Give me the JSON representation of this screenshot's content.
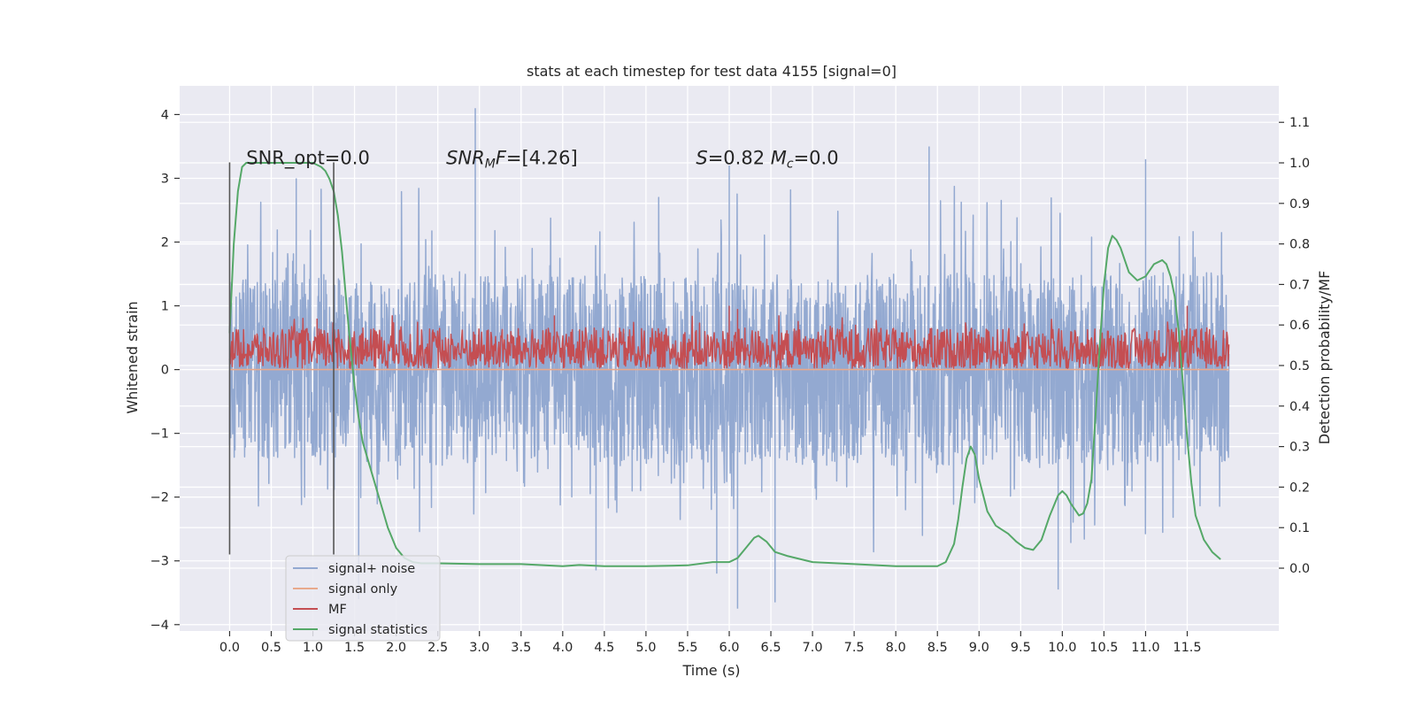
{
  "chart_data": {
    "type": "line",
    "title": "stats at each timestep for test data 4155 [signal=0]",
    "xlabel": "Time (s)",
    "ylabel": "Whitened strain",
    "y2label": "Detection probability/MF",
    "xlim": [
      -0.6,
      12.6
    ],
    "ylim": [
      -4.1,
      4.45
    ],
    "y2lim": [
      -0.155,
      1.19
    ],
    "x_ticks": [
      0.0,
      0.5,
      1.0,
      1.5,
      2.0,
      2.5,
      3.0,
      3.5,
      4.0,
      4.5,
      5.0,
      5.5,
      6.0,
      6.5,
      7.0,
      7.5,
      8.0,
      8.5,
      9.0,
      9.5,
      10.0,
      10.5,
      11.0,
      11.5
    ],
    "x_tick_labels": [
      "0.0",
      "0.5",
      "1.0",
      "1.5",
      "2.0",
      "2.5",
      "3.0",
      "3.5",
      "4.0",
      "4.5",
      "5.0",
      "5.5",
      "6.0",
      "6.5",
      "7.0",
      "7.5",
      "8.0",
      "8.5",
      "9.0",
      "9.5",
      "10.0",
      "10.5",
      "11.0",
      "11.5"
    ],
    "y_ticks": [
      -4,
      -3,
      -2,
      -1,
      0,
      1,
      2,
      3,
      4
    ],
    "y_tick_labels": [
      "−4",
      "−3",
      "−2",
      "−1",
      "0",
      "1",
      "2",
      "3",
      "4"
    ],
    "y2_ticks": [
      0.0,
      0.1,
      0.2,
      0.3,
      0.4,
      0.5,
      0.6,
      0.7,
      0.8,
      0.9,
      1.0,
      1.1
    ],
    "y2_tick_labels": [
      "0.0",
      "0.1",
      "0.2",
      "0.3",
      "0.4",
      "0.5",
      "0.6",
      "0.7",
      "0.8",
      "0.9",
      "1.0",
      "1.1"
    ],
    "grid": true,
    "legend_position": "lower-left",
    "annotations": [
      {
        "x": 0.2,
        "y": 3.22,
        "text": "SNR_opt=0.0"
      },
      {
        "x": 2.6,
        "y": 3.22,
        "text": "SNR_MF=[4.26]",
        "math": "snrmf"
      },
      {
        "x": 5.6,
        "y": 3.22,
        "text": "S=0.82   M_c=0.0",
        "math": "smc"
      }
    ],
    "vlines": [
      {
        "x": 0.0,
        "ymin": -2.9,
        "ymax": 3.25
      },
      {
        "x": 1.25,
        "ymin": -2.9,
        "ymax": 3.25
      }
    ],
    "series": [
      {
        "name": "signal+ noise",
        "color": "#93a9d1",
        "axis": "left",
        "kind": "noise",
        "x_range": [
          0.0,
          12.0
        ],
        "typical_range": [
          -1.5,
          1.5
        ],
        "peaks": [
          [
            2.95,
            4.1
          ],
          [
            6.0,
            3.2
          ],
          [
            8.4,
            3.5
          ],
          [
            11.0,
            3.3
          ],
          [
            0.8,
            3.0
          ],
          [
            5.85,
            -3.2
          ],
          [
            6.1,
            -3.75
          ],
          [
            6.55,
            -3.65
          ],
          [
            9.95,
            -3.45
          ],
          [
            4.4,
            -3.15
          ],
          [
            1.55,
            -3.6
          ]
        ]
      },
      {
        "name": "signal only",
        "color": "#e8a98c",
        "axis": "left",
        "kind": "flat",
        "x": [
          0.0,
          12.0
        ],
        "y": [
          0.0,
          0.0
        ]
      },
      {
        "name": "MF",
        "color": "#c44e52",
        "axis": "left",
        "kind": "noise_pos",
        "x_range": [
          0.0,
          12.0
        ],
        "typical_range": [
          0.02,
          0.65
        ],
        "peaks": [
          [
            6.0,
            1.0
          ],
          [
            6.1,
            0.95
          ],
          [
            11.5,
            1.0
          ],
          [
            3.9,
            0.85
          ],
          [
            1.05,
            0.8
          ]
        ]
      },
      {
        "name": "signal statistics",
        "color": "#55a868",
        "axis": "right",
        "kind": "line",
        "x": [
          0.0,
          0.05,
          0.1,
          0.15,
          0.2,
          0.3,
          0.5,
          0.8,
          1.0,
          1.1,
          1.15,
          1.2,
          1.25,
          1.3,
          1.35,
          1.4,
          1.45,
          1.5,
          1.55,
          1.6,
          1.7,
          1.8,
          1.9,
          2.0,
          2.1,
          2.2,
          2.3,
          2.5,
          3.0,
          3.5,
          4.0,
          4.2,
          4.5,
          5.0,
          5.5,
          5.8,
          6.0,
          6.1,
          6.2,
          6.3,
          6.35,
          6.45,
          6.55,
          6.7,
          7.0,
          7.5,
          8.0,
          8.5,
          8.6,
          8.7,
          8.75,
          8.8,
          8.85,
          8.9,
          8.95,
          9.0,
          9.1,
          9.2,
          9.35,
          9.45,
          9.55,
          9.65,
          9.75,
          9.85,
          9.95,
          10.0,
          10.05,
          10.1,
          10.2,
          10.25,
          10.3,
          10.35,
          10.4,
          10.45,
          10.5,
          10.55,
          10.6,
          10.65,
          10.7,
          10.75,
          10.8,
          10.9,
          11.0,
          11.1,
          11.2,
          11.25,
          11.3,
          11.35,
          11.4,
          11.45,
          11.5,
          11.55,
          11.6,
          11.7,
          11.8,
          11.9
        ],
        "y": [
          0.58,
          0.8,
          0.93,
          0.99,
          1.0,
          1.0,
          1.0,
          1.0,
          1.0,
          0.99,
          0.98,
          0.96,
          0.93,
          0.87,
          0.78,
          0.66,
          0.55,
          0.45,
          0.37,
          0.31,
          0.24,
          0.17,
          0.1,
          0.05,
          0.025,
          0.015,
          0.012,
          0.012,
          0.01,
          0.01,
          0.005,
          0.008,
          0.005,
          0.005,
          0.007,
          0.015,
          0.015,
          0.025,
          0.05,
          0.075,
          0.08,
          0.065,
          0.04,
          0.03,
          0.015,
          0.01,
          0.005,
          0.005,
          0.015,
          0.06,
          0.12,
          0.2,
          0.27,
          0.3,
          0.28,
          0.22,
          0.14,
          0.105,
          0.085,
          0.065,
          0.05,
          0.045,
          0.07,
          0.13,
          0.18,
          0.19,
          0.18,
          0.16,
          0.13,
          0.135,
          0.16,
          0.22,
          0.38,
          0.55,
          0.7,
          0.79,
          0.82,
          0.81,
          0.79,
          0.76,
          0.73,
          0.71,
          0.72,
          0.75,
          0.76,
          0.75,
          0.72,
          0.67,
          0.58,
          0.45,
          0.32,
          0.21,
          0.13,
          0.07,
          0.04,
          0.022
        ]
      }
    ]
  }
}
